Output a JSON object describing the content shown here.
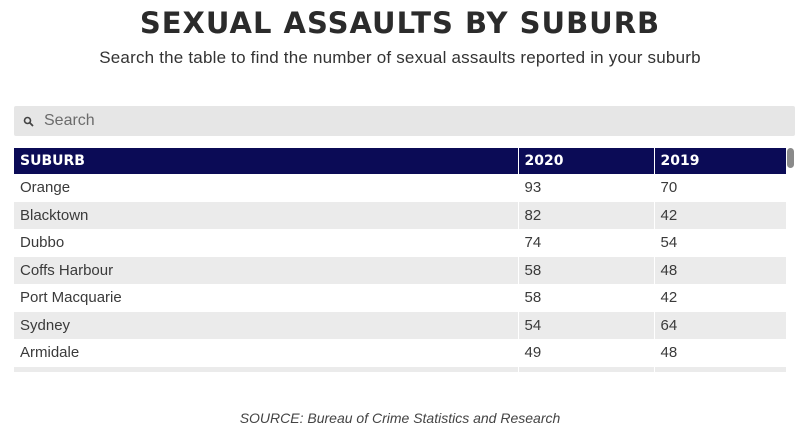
{
  "title": "SEXUAL ASSAULTS BY SUBURB",
  "subtitle": "Search the table to find the number of sexual assaults reported in your suburb",
  "search": {
    "placeholder": "Search",
    "value": ""
  },
  "table": {
    "headers": [
      "SUBURB",
      "2020",
      "2019"
    ],
    "rows": [
      [
        "Orange",
        "93",
        "70"
      ],
      [
        "Blacktown",
        "82",
        "42"
      ],
      [
        "Dubbo",
        "74",
        "54"
      ],
      [
        "Coffs Harbour",
        "58",
        "48"
      ],
      [
        "Port Macquarie",
        "58",
        "42"
      ],
      [
        "Sydney",
        "54",
        "64"
      ],
      [
        "Armidale",
        "49",
        "48"
      ],
      [
        "",
        "",
        ""
      ]
    ]
  },
  "source": "SOURCE: Bureau of Crime Statistics and Research",
  "colors": {
    "header_bg": "#0b0b56",
    "row_alt": "#ebebeb",
    "search_bg": "#e6e6e6"
  },
  "icons": {
    "search": "search-icon"
  }
}
